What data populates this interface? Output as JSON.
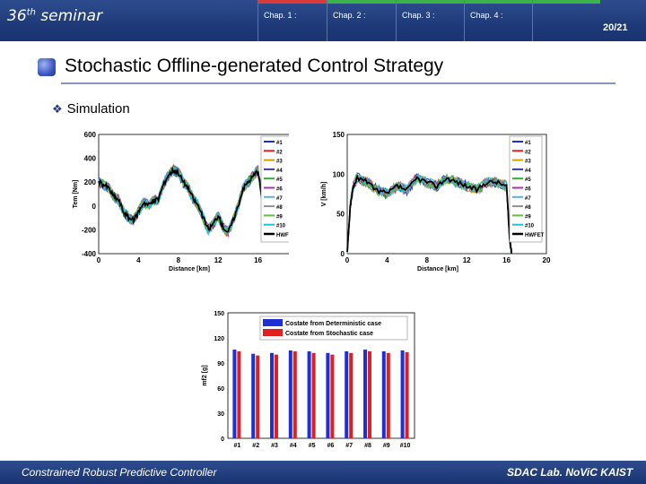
{
  "header": {
    "seminar_prefix": "36",
    "seminar_sup": "th",
    "seminar_suffix": " seminar",
    "chapters": [
      {
        "label": "Chap. 1 :",
        "color": "#d93a3a"
      },
      {
        "label": "Chap. 2 :",
        "color": "#3bb34a"
      },
      {
        "label": "Chap. 3 :",
        "color": "#3bb34a"
      },
      {
        "label": "Chap. 4 :",
        "color": "#3bb34a"
      },
      {
        "label": "",
        "color": "#3bb34a"
      }
    ],
    "page": "20/21"
  },
  "title": "Stochastic Offline-generated Control Strategy",
  "section": "Simulation",
  "legend_entries": [
    "#1",
    "#2",
    "#3",
    "#4",
    "#5",
    "#6",
    "#7",
    "#8",
    "#9",
    "#10",
    "HWFET"
  ],
  "legend_colors": [
    "#1f2fd6",
    "#e02020",
    "#d6a000",
    "#3a3aa0",
    "#30b030",
    "#b030b0",
    "#5ab0e0",
    "#909090",
    "#60c040",
    "#20c0e0",
    "#000000"
  ],
  "chart_data": [
    {
      "type": "line",
      "ylabel": "Tem [Nm]",
      "xlabel": "Distance [km]",
      "xlim": [
        0,
        20
      ],
      "ylim": [
        -400,
        600
      ],
      "xticks": [
        "0",
        "4",
        "8",
        "12",
        "16",
        "20"
      ],
      "yticks": [
        "600",
        "400",
        "200",
        "0",
        "-200",
        "-400"
      ],
      "x": [
        0,
        0.5,
        1,
        1.5,
        2,
        2.5,
        3,
        3.5,
        4,
        4.5,
        5,
        5.5,
        6,
        6.5,
        7,
        7.5,
        8,
        8.5,
        9,
        9.5,
        10,
        10.5,
        11,
        11.5,
        12,
        12.5,
        13,
        13.5,
        14,
        14.5,
        15,
        15.5,
        16,
        16.5
      ],
      "series": [
        {
          "name": "HWFET",
          "values": [
            200,
            180,
            150,
            80,
            50,
            -50,
            -100,
            -120,
            -50,
            30,
            10,
            40,
            60,
            180,
            260,
            300,
            280,
            200,
            150,
            60,
            0,
            -100,
            -200,
            -150,
            -80,
            -180,
            -220,
            -120,
            0,
            150,
            200,
            250,
            300,
            0
          ]
        }
      ]
    },
    {
      "type": "line",
      "ylabel": "V [km/h]",
      "xlabel": "Distance [km]",
      "xlim": [
        0,
        20
      ],
      "ylim": [
        0,
        150
      ],
      "xticks": [
        "0",
        "4",
        "8",
        "12",
        "16",
        "20"
      ],
      "yticks": [
        "150",
        "100",
        "50",
        "0"
      ],
      "x": [
        0,
        0.3,
        0.6,
        1,
        2,
        3,
        4,
        5,
        6,
        7,
        8,
        9,
        10,
        11,
        12,
        13,
        14,
        15,
        16,
        16.3,
        16.5
      ],
      "series": [
        {
          "name": "HWFET",
          "values": [
            0,
            60,
            85,
            95,
            90,
            80,
            75,
            85,
            80,
            95,
            90,
            85,
            95,
            90,
            85,
            80,
            90,
            90,
            85,
            20,
            0
          ]
        }
      ]
    },
    {
      "type": "bar",
      "ylabel": "mf2 [g]",
      "ylim": [
        0,
        150
      ],
      "yticks": [
        "150",
        "120",
        "90",
        "60",
        "30",
        "0"
      ],
      "categories": [
        "#1",
        "#2",
        "#3",
        "#4",
        "#5",
        "#6",
        "#7",
        "#8",
        "#9",
        "#10"
      ],
      "series": [
        {
          "name": "Costate from Deterministic case",
          "color": "#1f2fd6",
          "values": [
            106,
            101,
            102,
            105,
            104,
            102,
            104,
            106,
            104,
            105
          ]
        },
        {
          "name": "Costate from Stochastic case",
          "color": "#e02020",
          "values": [
            104,
            99,
            100,
            104,
            102,
            100,
            102,
            104,
            102,
            103
          ]
        }
      ]
    }
  ],
  "footer": {
    "left": "Constrained Robust Predictive Controller",
    "right": "SDAC Lab. NoViC KAIST"
  }
}
